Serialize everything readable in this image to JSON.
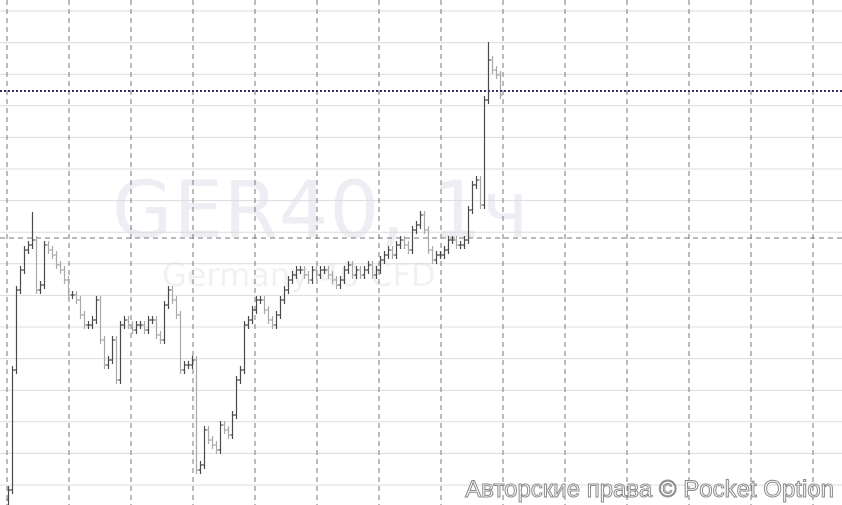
{
  "watermark": {
    "symbol": "GER40, 1ч",
    "name": "Germany 40 CFD"
  },
  "copyright": "Авторские права © Pocket Option",
  "colors": {
    "up": "#4a4a4a",
    "down": "#a9a9a9",
    "grid": "#dcdcdc",
    "dashed": "#777777",
    "price_line": "#333366"
  },
  "chart_data": {
    "type": "ohlc",
    "title": "",
    "xlabel": "",
    "ylabel": "",
    "ylim": [
      0,
      505
    ],
    "grid": true,
    "current_price_line": 414,
    "crosshair_price": 267,
    "close": [
      15,
      135,
      215,
      235,
      255,
      260,
      265,
      215,
      220,
      260,
      255,
      250,
      240,
      235,
      225,
      210,
      210,
      205,
      190,
      180,
      180,
      185,
      205,
      165,
      140,
      145,
      165,
      125,
      180,
      185,
      180,
      175,
      180,
      180,
      175,
      185,
      185,
      170,
      165,
      200,
      215,
      205,
      190,
      135,
      140,
      140,
      145,
      35,
      40,
      75,
      65,
      60,
      55,
      80,
      75,
      70,
      90,
      125,
      135,
      180,
      185,
      195,
      205,
      205,
      195,
      185,
      180,
      190,
      205,
      215,
      225,
      230,
      235,
      235,
      230,
      225,
      235,
      230,
      235,
      235,
      230,
      225,
      220,
      225,
      235,
      240,
      230,
      235,
      230,
      235,
      240,
      230,
      235,
      245,
      250,
      255,
      250,
      260,
      265,
      260,
      255,
      275,
      280,
      290,
      275,
      255,
      245,
      250,
      250,
      255,
      265,
      265,
      260,
      260,
      265,
      295,
      320,
      325,
      300,
      405,
      445,
      435,
      430,
      410
    ],
    "high_overrides": {
      "6": 293,
      "120": 463
    },
    "low_overrides": {
      "0": 0
    }
  }
}
